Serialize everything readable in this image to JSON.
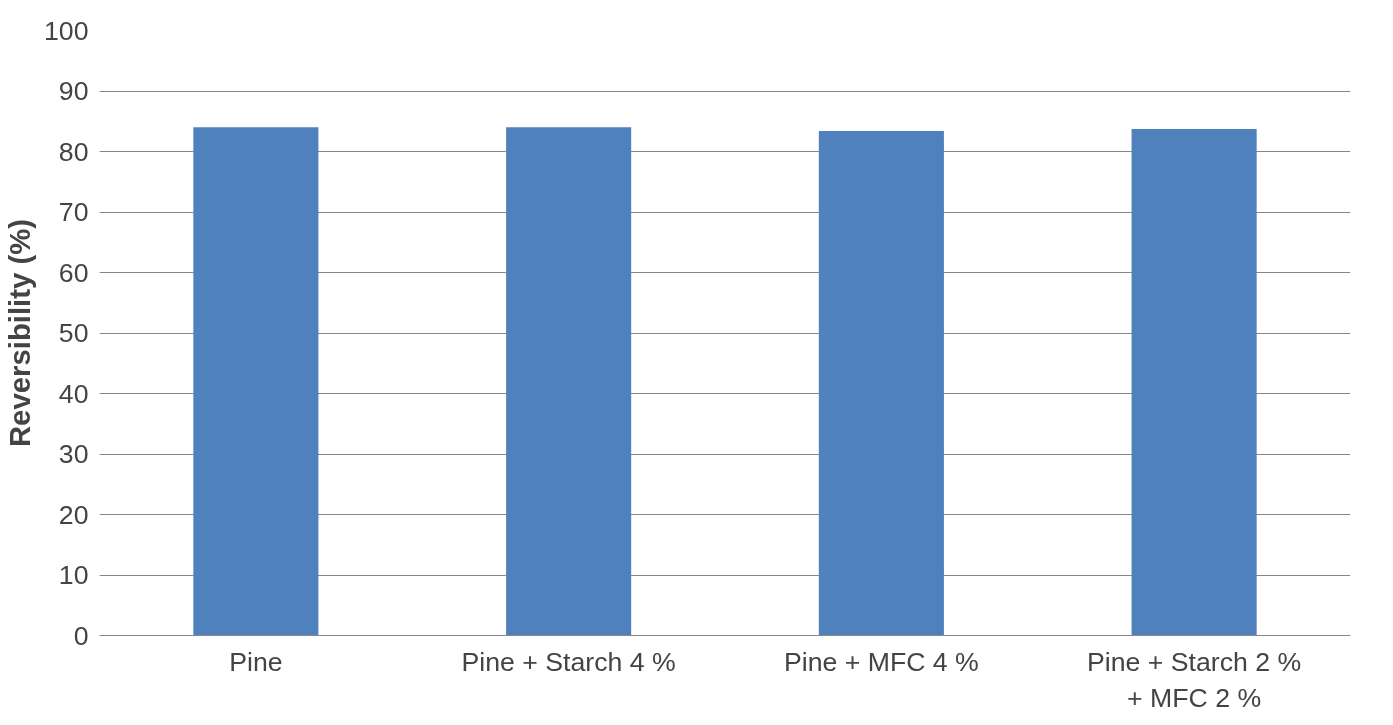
{
  "chart_data": {
    "type": "bar",
    "ylabel": "Reversibility (%)",
    "categories": [
      "Pine",
      "Pine + Starch 4 %",
      "Pine + MFC 4 %",
      "Pine + Starch 2 % + MFC 2 %"
    ],
    "values": [
      84,
      84,
      83.4,
      83.7
    ],
    "color": "#4f81bd",
    "ylim": [
      0,
      100
    ],
    "yticks": [
      0,
      10,
      20,
      30,
      40,
      50,
      60,
      70,
      80,
      90,
      100
    ],
    "grid": "y"
  }
}
